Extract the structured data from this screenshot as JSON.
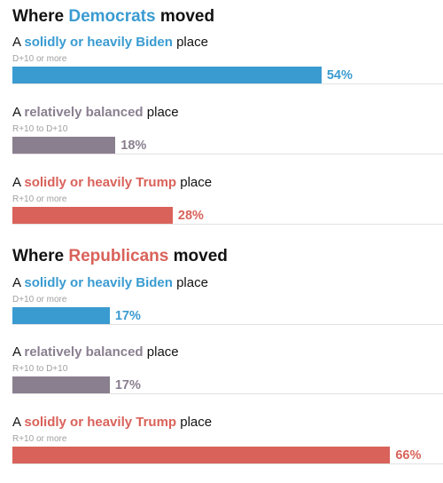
{
  "colors": {
    "biden": "#3a9bd1",
    "balanced": "#8a7f8f",
    "trump": "#d9625a"
  },
  "chart_data": [
    {
      "type": "bar",
      "title": "Where Democrats moved",
      "title_parts": {
        "before": "Where ",
        "highlight": "Democrats",
        "after": " moved",
        "highlight_color": "biden"
      },
      "xlim": [
        0,
        100
      ],
      "bars": [
        {
          "prefix": "A ",
          "highlight": "solidly or heavily Biden",
          "suffix": " place",
          "range": "D+10 or more",
          "value": 54,
          "value_label": "54%",
          "color": "biden"
        },
        {
          "prefix": "A ",
          "highlight": "relatively balanced",
          "suffix": " place",
          "range": "R+10 to D+10",
          "value": 18,
          "value_label": "18%",
          "color": "balanced"
        },
        {
          "prefix": "A ",
          "highlight": "solidly or heavily Trump",
          "suffix": " place",
          "range": "R+10 or more",
          "value": 28,
          "value_label": "28%",
          "color": "trump"
        }
      ]
    },
    {
      "type": "bar",
      "title": "Where Republicans moved",
      "title_parts": {
        "before": "Where ",
        "highlight": "Republicans",
        "after": " moved",
        "highlight_color": "trump"
      },
      "xlim": [
        0,
        100
      ],
      "bars": [
        {
          "prefix": "A ",
          "highlight": "solidly or heavily Biden",
          "suffix": " place",
          "range": "D+10 or more",
          "value": 17,
          "value_label": "17%",
          "color": "biden"
        },
        {
          "prefix": "A ",
          "highlight": "relatively balanced",
          "suffix": " place",
          "range": "R+10 to D+10",
          "value": 17,
          "value_label": "17%",
          "color": "balanced"
        },
        {
          "prefix": "A ",
          "highlight": "solidly or heavily Trump",
          "suffix": " place",
          "range": "R+10 or more",
          "value": 66,
          "value_label": "66%",
          "color": "trump"
        }
      ]
    }
  ]
}
